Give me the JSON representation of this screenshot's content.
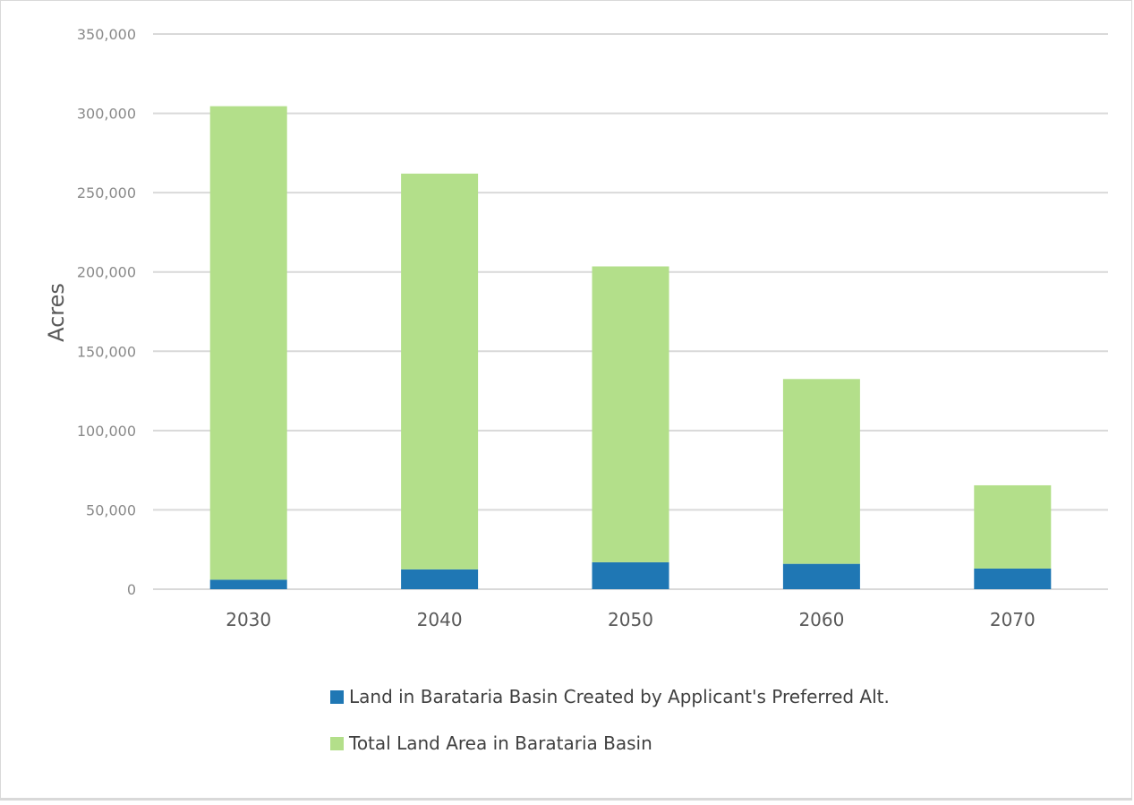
{
  "chart_data": {
    "type": "bar",
    "stacked": true,
    "categories": [
      "2030",
      "2040",
      "2050",
      "2060",
      "2070"
    ],
    "series": [
      {
        "name": "Land in Barataria Basin Created by Applicant's Preferred Alt.",
        "color": "#1f77b4",
        "values": [
          6000,
          12500,
          17000,
          16000,
          13000
        ]
      },
      {
        "name": "Total Land Area in Barataria Basin",
        "color": "#b3df8a",
        "values": [
          298500,
          249500,
          186500,
          116500,
          52500
        ]
      }
    ],
    "ylabel": "Acres",
    "xlabel": "",
    "ylim": [
      0,
      350000
    ],
    "yticks": [
      "0",
      "50,000",
      "100,000",
      "150,000",
      "200,000",
      "250,000",
      "300,000",
      "350,000"
    ],
    "ytick_values": [
      0,
      50000,
      100000,
      150000,
      200000,
      250000,
      300000,
      350000
    ],
    "grid": true,
    "legend_position": "bottom"
  }
}
